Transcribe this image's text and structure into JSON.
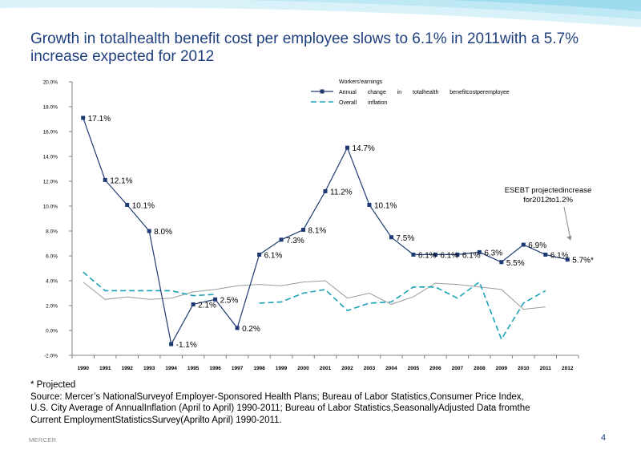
{
  "title": "Growth in totalhealth benefit cost per employee slows to 6.1% in 2011with a 5.7% increase expected for 2012",
  "chart_data": {
    "type": "line",
    "title": "",
    "xlabel": "",
    "ylabel": "",
    "x": [
      "1990",
      "1991",
      "1992",
      "1993",
      "1994",
      "1995",
      "1996",
      "1997",
      "1998",
      "1999",
      "2000",
      "2001",
      "2002",
      "2003",
      "2004",
      "2005",
      "2006",
      "2007",
      "2008",
      "2009",
      "2010",
      "2011",
      "2012"
    ],
    "ylim": [
      -2,
      20
    ],
    "y_ticks": [
      -2,
      0,
      2,
      4,
      6,
      8,
      10,
      12,
      14,
      16,
      18,
      20
    ],
    "y_tick_labels": [
      "-2.0%",
      "0.0%",
      "2.0%",
      "4.0%",
      "6.0%",
      "8.0%",
      "10.0%",
      "12.0%",
      "14.0%",
      "16.0%",
      "18.0%",
      "20.0%"
    ],
    "grid": false,
    "legend_position": "top",
    "series": [
      {
        "name": "Workers'earnings",
        "color": "#9a9a9a",
        "style": "solid-thin",
        "values": [
          3.9,
          2.5,
          2.7,
          2.5,
          2.6,
          3.1,
          3.3,
          3.6,
          3.7,
          3.6,
          3.9,
          4.0,
          2.6,
          3.0,
          2.1,
          2.7,
          3.8,
          3.7,
          3.5,
          3.3,
          1.7,
          1.9,
          null
        ]
      },
      {
        "name": "Annual change in totalhealth benefitcostperemployee",
        "color": "#1f3a73",
        "style": "solid-markers",
        "values": [
          17.1,
          12.1,
          10.1,
          8.0,
          -1.1,
          2.1,
          2.5,
          0.2,
          6.1,
          7.3,
          8.1,
          11.2,
          14.7,
          10.1,
          7.5,
          6.1,
          6.1,
          6.1,
          6.3,
          5.5,
          6.9,
          6.1,
          5.7
        ],
        "labels": [
          "17.1%",
          "12.1%",
          "10.1%",
          "8.0%",
          "-1.1%",
          "2.1%",
          "2.5%",
          "0.2%",
          "6.1%",
          "7.3%",
          "8.1%",
          "11.2%",
          "14.7%",
          "10.1%",
          "7.5%",
          "6.1%",
          "6.1%",
          "6.1%",
          "6.3%",
          "5.5%",
          "6.9%",
          "6.1%",
          "5.7%*"
        ]
      },
      {
        "name": "Overall inflation",
        "color": "#1aa3b8",
        "style": "dashed",
        "values": [
          4.7,
          3.2,
          3.2,
          3.2,
          3.2,
          2.8,
          2.9,
          null,
          2.2,
          2.3,
          3.0,
          3.3,
          1.6,
          2.2,
          2.3,
          3.5,
          3.5,
          2.6,
          3.9,
          -0.7,
          2.2,
          3.2,
          null
        ]
      }
    ],
    "annotations": [
      {
        "text_lines": [
          "ESEBT projectedincrease",
          "for2012to1.2%"
        ],
        "points_to": "2012"
      }
    ]
  },
  "footnote": {
    "projected": "* Projected",
    "source_lines": [
      "Source: Mercer’s NationalSurveyof Employer-Sponsored Health Plans; Bureau of Labor Statistics,Consumer Price Index,",
      "U.S. City Average of AnnualInflation (April to April) 1990-2011; Bureau of Labor Statistics,SeasonallyAdjusted Data fromthe",
      "Current EmploymentStatisticsSurvey(Aprilto April) 1990-2011."
    ]
  },
  "footer": {
    "brand": "MERCER",
    "page_number": "4"
  },
  "colors": {
    "title": "#1f3f7f",
    "banner": "#cdeef7",
    "banner_dark": "#8fd4ea"
  }
}
